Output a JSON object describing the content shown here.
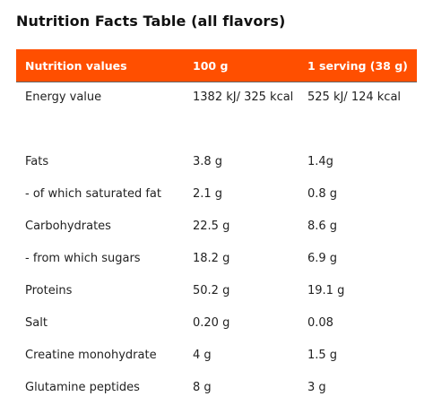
{
  "title": "Nutrition Facts Table (all flavors)",
  "table": {
    "headers": [
      "Nutrition values",
      "100 g",
      "1 serving (38 g)"
    ],
    "rows": [
      [
        "Energy value",
        "1382 kJ/ 325 kcal",
        "525 kJ/ 124 kcal"
      ],
      [
        "Fats",
        "3.8 g",
        "1.4g"
      ],
      [
        "- of which saturated fat",
        "2.1 g",
        "0.8 g"
      ],
      [
        "Carbohydrates",
        "22.5 g",
        "8.6 g"
      ],
      [
        "- from which sugars",
        "18.2 g",
        "6.9 g"
      ],
      [
        "Proteins",
        "50.2 g",
        "19.1 g"
      ],
      [
        "Salt",
        "0.20 g",
        "0.08"
      ],
      [
        "Creatine monohydrate",
        "4 g",
        "1.5 g"
      ],
      [
        "Glutamine peptides",
        "8 g",
        "3 g"
      ]
    ]
  },
  "colors": {
    "header_background": "#ff4f00",
    "header_text": "#ffffff"
  }
}
